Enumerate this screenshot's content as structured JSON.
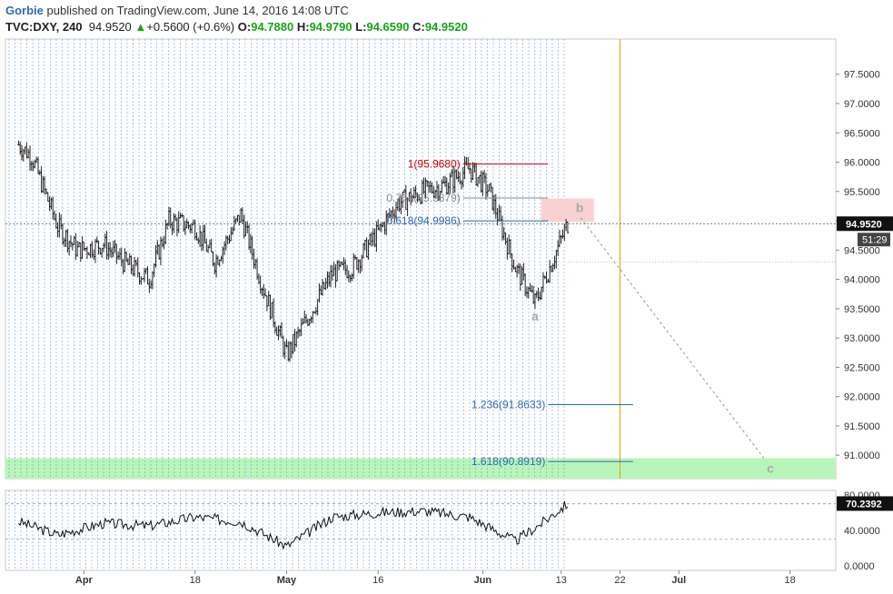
{
  "header": {
    "author": "Gorbie",
    "published": "published on TradingView.com, June 14, 2016 14:08 UTC",
    "symbol": "TVC:DXY, 240",
    "last": "94.9520",
    "change_arrow": "▲",
    "change": "+0.5600 (+0.6%)",
    "o_label": "O:",
    "o": "94.7880",
    "h_label": "H:",
    "h": "94.9790",
    "l_label": "L:",
    "l": "94.6590",
    "c_label": "C:",
    "c": "94.9520"
  },
  "colors": {
    "candle": "#222222",
    "grid_vertical": "#5b8fd6",
    "fib_red": "#cc0000",
    "fib_grey": "#888888",
    "fib_blue": "#2e6ab5",
    "green_zone": "#b9f5b9",
    "pink_zone": "#f8d2d2",
    "orange_line": "#e0a000",
    "price_label_bg": "#111111"
  },
  "chart_data": [
    {
      "type": "line",
      "title": "TVC:DXY, 240",
      "ylim": [
        90.6,
        98.1
      ],
      "y_ticks": [
        "97.5000",
        "97.0000",
        "96.5000",
        "96.0000",
        "95.5000",
        "95.0000",
        "94.5000",
        "94.0000",
        "93.5000",
        "93.0000",
        "92.5000",
        "92.0000",
        "91.5000",
        "91.0000"
      ],
      "x_ticks": [
        "Apr",
        "18",
        "May",
        "16",
        "Jun",
        "13",
        "22",
        "Jul",
        "18"
      ],
      "last_price_label": "94.9520",
      "countdown_label": "51:29",
      "series": [
        {
          "x": [
            "2016-03-22",
            "2016-03-24",
            "2016-03-28",
            "2016-03-31",
            "2016-04-04",
            "2016-04-07",
            "2016-04-11",
            "2016-04-14",
            "2016-04-18",
            "2016-04-21",
            "2016-04-25",
            "2016-04-28",
            "2016-05-02",
            "2016-05-05",
            "2016-05-09",
            "2016-05-12",
            "2016-05-16",
            "2016-05-19",
            "2016-05-23",
            "2016-05-26",
            "2016-05-30",
            "2016-06-02",
            "2016-06-06",
            "2016-06-09",
            "2016-06-14"
          ],
          "values": [
            96.3,
            96.1,
            94.9,
            94.5,
            94.6,
            94.3,
            94.0,
            95.0,
            94.9,
            94.3,
            95.1,
            94.0,
            92.7,
            93.3,
            94.1,
            94.2,
            94.8,
            95.3,
            95.5,
            95.6,
            95.9,
            95.5,
            94.2,
            93.6,
            94.95
          ]
        }
      ],
      "fib_levels": [
        {
          "label": "1(95.9680)",
          "value": 95.968
        },
        {
          "label": "0.764(95.3879)",
          "value": 95.3879
        },
        {
          "label": "0.618(94.9986)",
          "value": 94.9986
        },
        {
          "label": "1.236(91.8633)",
          "value": 91.8633
        },
        {
          "label": "1.618(90.8919)",
          "value": 90.8919
        }
      ],
      "wave_labels": [
        {
          "label": "a",
          "x": "2016-06-09",
          "value": 93.3
        },
        {
          "label": "b",
          "x": "2016-06-15",
          "value": 95.15
        },
        {
          "label": "c",
          "x": "2016-07-15",
          "value": 90.7
        }
      ]
    },
    {
      "type": "line",
      "title": "",
      "ylim": [
        -5,
        85
      ],
      "y_ticks": [
        "80.0000",
        "40.0000",
        "0.0000"
      ],
      "last_label": "70.2392",
      "levels": [
        70,
        30
      ],
      "series": [
        {
          "x": [
            "2016-03-22",
            "2016-03-28",
            "2016-04-04",
            "2016-04-11",
            "2016-04-18",
            "2016-04-25",
            "2016-05-02",
            "2016-05-09",
            "2016-05-16",
            "2016-05-23",
            "2016-05-30",
            "2016-06-06",
            "2016-06-10",
            "2016-06-14"
          ],
          "values": [
            50,
            35,
            48,
            45,
            55,
            50,
            22,
            55,
            60,
            62,
            55,
            28,
            48,
            70.24
          ]
        }
      ]
    }
  ]
}
